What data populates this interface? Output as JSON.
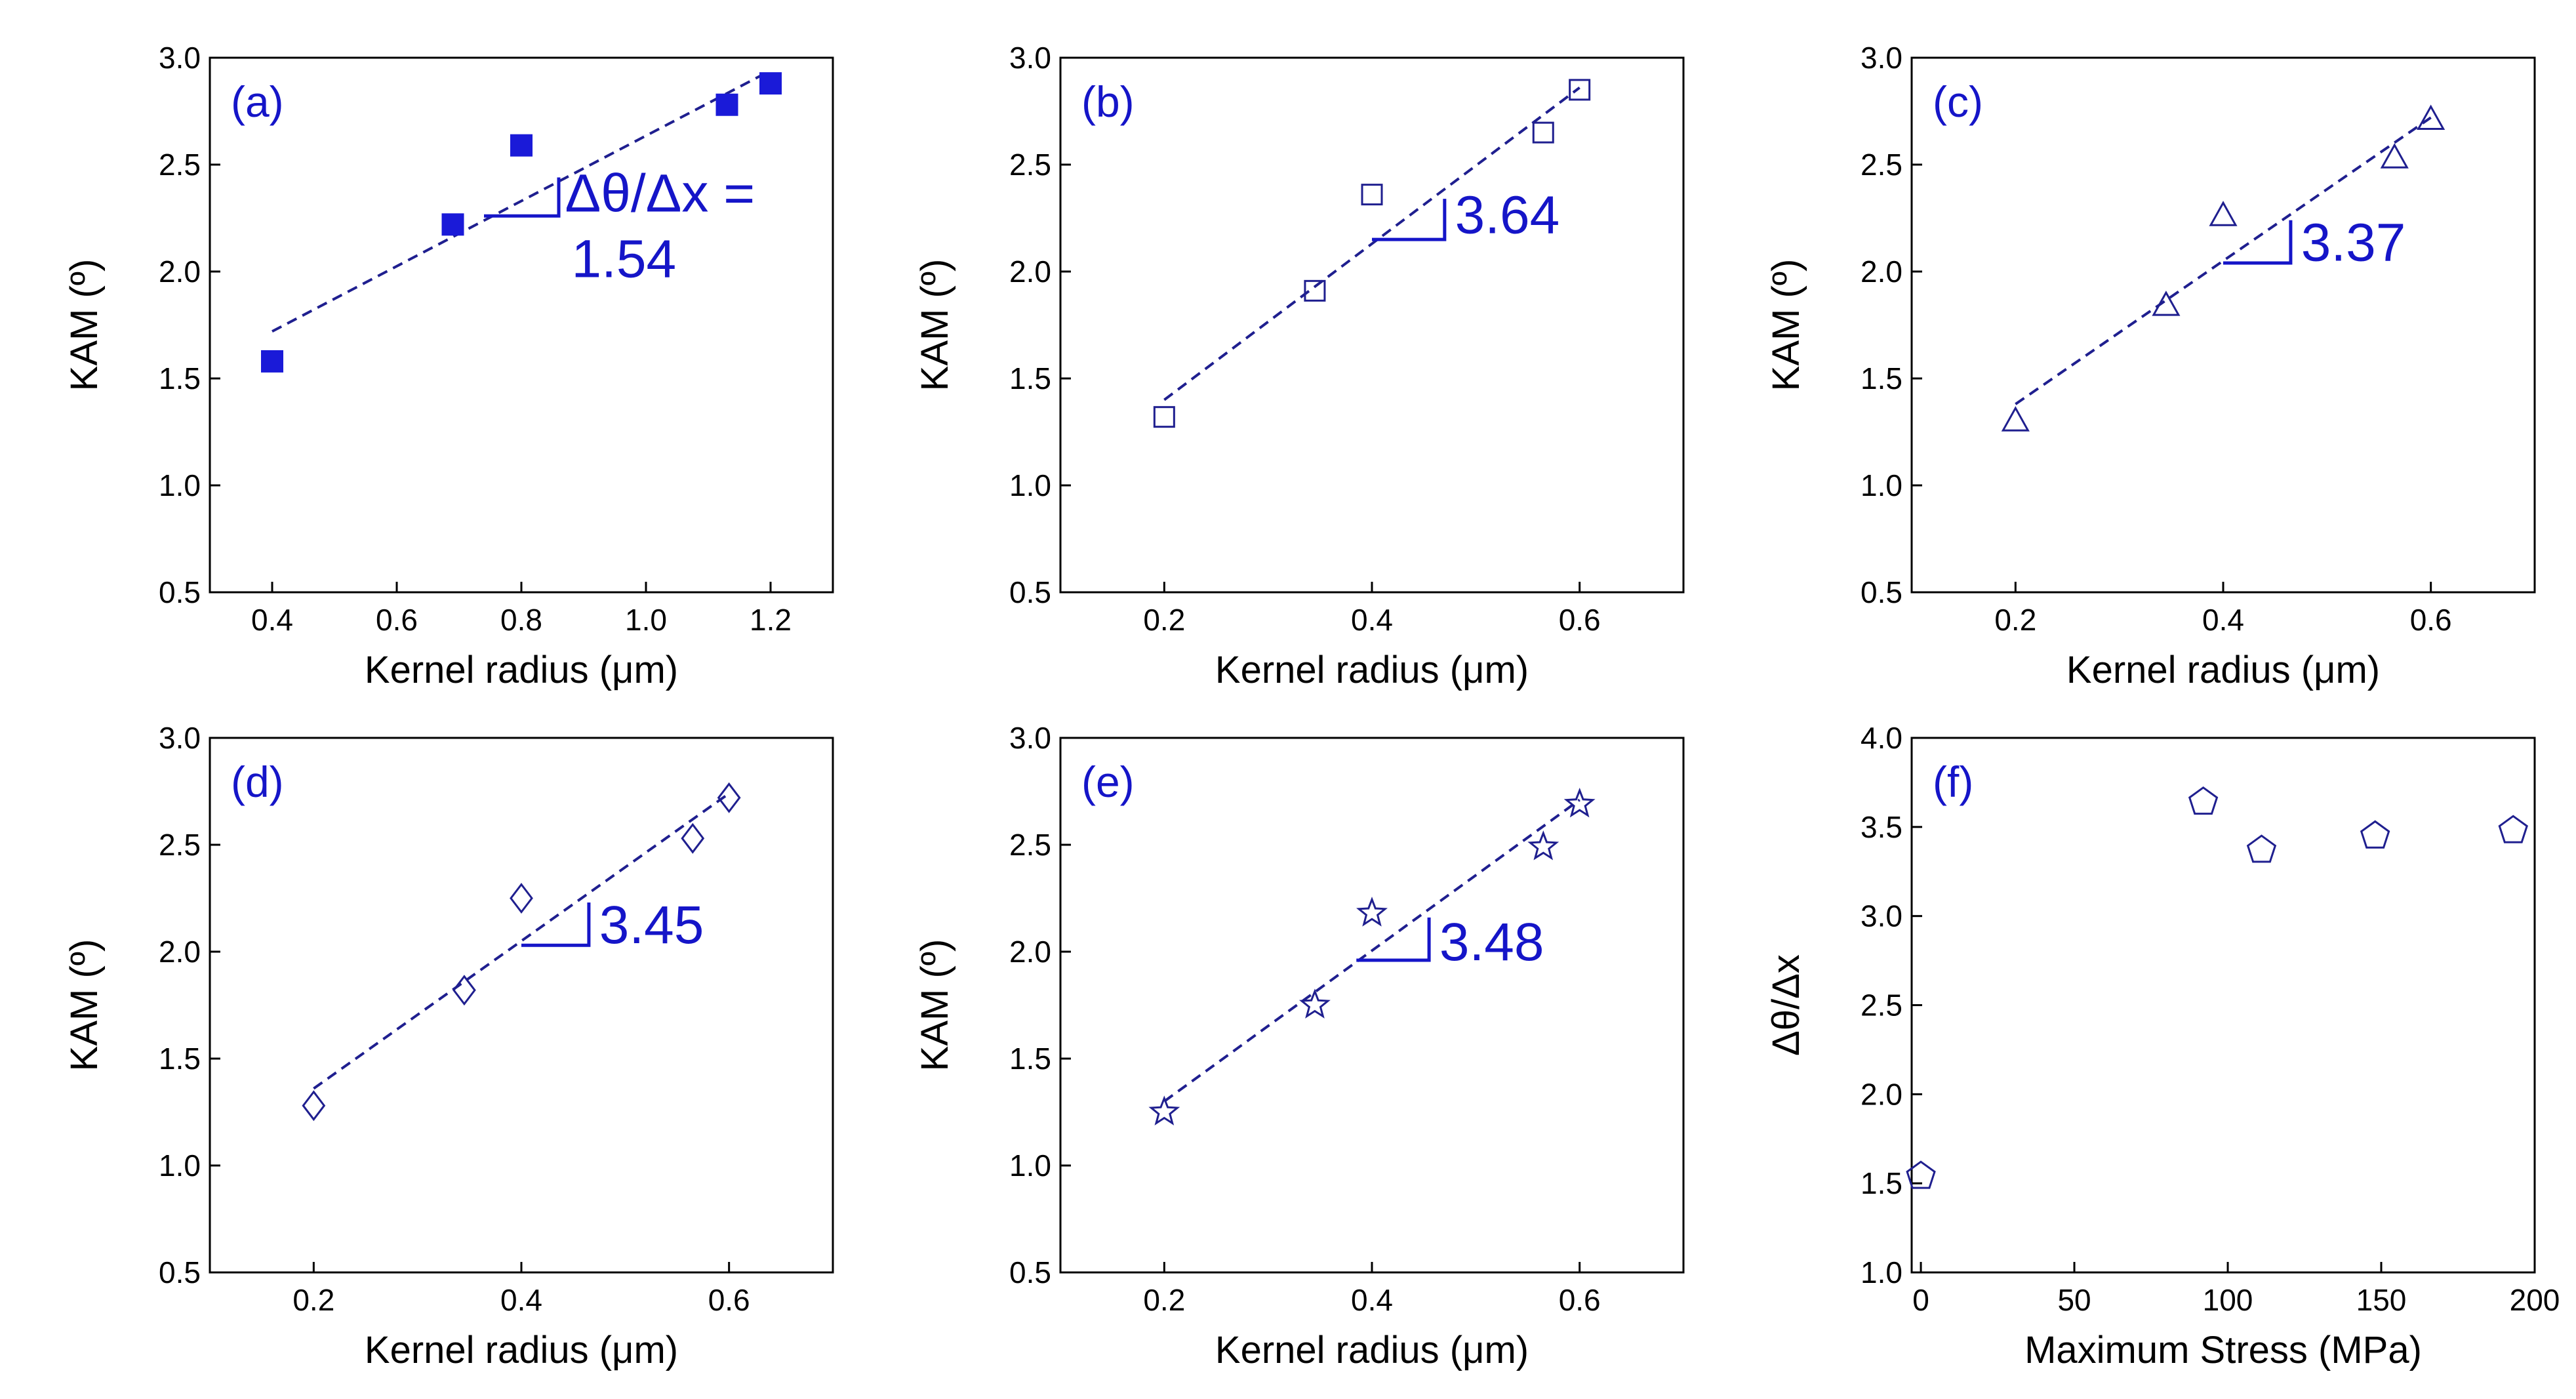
{
  "colors": {
    "filled_marker": "#1a1ad8",
    "open_marker": "#1f1f8f",
    "fit_line": "#1f1f8f",
    "slope_annotation": "#1515c8",
    "axis": "#000000"
  },
  "chart_data": [
    {
      "panel": "(a)",
      "type": "scatter",
      "marker": "filled-square",
      "xlabel": "Kernel radius (μm)",
      "ylabel": "KAM (º)",
      "xlim": [
        0.3,
        1.3
      ],
      "ylim": [
        0.5,
        3.0
      ],
      "xticks": [
        0.4,
        0.6,
        0.8,
        1.0,
        1.2
      ],
      "xtick_labels": [
        "0.4",
        "0.6",
        "0.8",
        "1.0",
        "1.2"
      ],
      "yticks": [
        0.5,
        1.0,
        1.5,
        2.0,
        2.5,
        3.0
      ],
      "ytick_labels": [
        "0.5",
        "1.0",
        "1.5",
        "2.0",
        "2.5",
        "3.0"
      ],
      "x": [
        0.4,
        0.69,
        0.8,
        1.13,
        1.2
      ],
      "y": [
        1.58,
        2.22,
        2.59,
        2.78,
        2.88
      ],
      "fit": {
        "x": [
          0.4,
          1.2
        ],
        "y": [
          1.72,
          2.94
        ]
      },
      "slope_triangle": {
        "x0": 0.74,
        "x1": 0.86,
        "y0": 2.26,
        "y1": 2.44
      },
      "slope_text": [
        "Δθ/Δx =",
        "1.54"
      ],
      "slope_text_pos": {
        "x": 0.87,
        "y": 2.28
      }
    },
    {
      "panel": "(b)",
      "type": "scatter",
      "marker": "open-square",
      "xlabel": "Kernel radius (μm)",
      "ylabel": "KAM (º)",
      "xlim": [
        0.1,
        0.7
      ],
      "ylim": [
        0.5,
        3.0
      ],
      "xticks": [
        0.2,
        0.4,
        0.6
      ],
      "xtick_labels": [
        "0.2",
        "0.4",
        "0.6"
      ],
      "yticks": [
        0.5,
        1.0,
        1.5,
        2.0,
        2.5,
        3.0
      ],
      "ytick_labels": [
        "0.5",
        "1.0",
        "1.5",
        "2.0",
        "2.5",
        "3.0"
      ],
      "x": [
        0.2,
        0.345,
        0.4,
        0.565,
        0.6
      ],
      "y": [
        1.32,
        1.91,
        2.36,
        2.65,
        2.85
      ],
      "fit": {
        "x": [
          0.2,
          0.6
        ],
        "y": [
          1.4,
          2.86
        ]
      },
      "slope_triangle": {
        "x0": 0.4,
        "x1": 0.47,
        "y0": 2.15,
        "y1": 2.34
      },
      "slope_text": [
        "3.64"
      ],
      "slope_text_pos": {
        "x": 0.48,
        "y": 2.18
      }
    },
    {
      "panel": "(c)",
      "type": "scatter",
      "marker": "open-triangle",
      "xlabel": "Kernel radius (μm)",
      "ylabel": "KAM (º)",
      "xlim": [
        0.1,
        0.7
      ],
      "ylim": [
        0.5,
        3.0
      ],
      "xticks": [
        0.2,
        0.4,
        0.6
      ],
      "xtick_labels": [
        "0.2",
        "0.4",
        "0.6"
      ],
      "yticks": [
        0.5,
        1.0,
        1.5,
        2.0,
        2.5,
        3.0
      ],
      "ytick_labels": [
        "0.5",
        "1.0",
        "1.5",
        "2.0",
        "2.5",
        "3.0"
      ],
      "x": [
        0.2,
        0.345,
        0.4,
        0.565,
        0.6
      ],
      "y": [
        1.3,
        1.84,
        2.26,
        2.53,
        2.71
      ],
      "fit": {
        "x": [
          0.2,
          0.6
        ],
        "y": [
          1.38,
          2.72
        ]
      },
      "slope_triangle": {
        "x0": 0.4,
        "x1": 0.465,
        "y0": 2.04,
        "y1": 2.24
      },
      "slope_text": [
        "3.37"
      ],
      "slope_text_pos": {
        "x": 0.475,
        "y": 2.05
      }
    },
    {
      "panel": "(d)",
      "type": "scatter",
      "marker": "open-diamond",
      "xlabel": "Kernel radius (μm)",
      "ylabel": "KAM (º)",
      "xlim": [
        0.1,
        0.7
      ],
      "ylim": [
        0.5,
        3.0
      ],
      "xticks": [
        0.2,
        0.4,
        0.6
      ],
      "xtick_labels": [
        "0.2",
        "0.4",
        "0.6"
      ],
      "yticks": [
        0.5,
        1.0,
        1.5,
        2.0,
        2.5,
        3.0
      ],
      "ytick_labels": [
        "0.5",
        "1.0",
        "1.5",
        "2.0",
        "2.5",
        "3.0"
      ],
      "x": [
        0.2,
        0.345,
        0.4,
        0.565,
        0.6
      ],
      "y": [
        1.28,
        1.82,
        2.25,
        2.53,
        2.72
      ],
      "fit": {
        "x": [
          0.2,
          0.6
        ],
        "y": [
          1.36,
          2.74
        ]
      },
      "slope_triangle": {
        "x0": 0.4,
        "x1": 0.465,
        "y0": 2.03,
        "y1": 2.23
      },
      "slope_text": [
        "3.45"
      ],
      "slope_text_pos": {
        "x": 0.475,
        "y": 2.04
      }
    },
    {
      "panel": "(e)",
      "type": "scatter",
      "marker": "open-star",
      "xlabel": "Kernel radius (μm)",
      "ylabel": "KAM (º)",
      "xlim": [
        0.1,
        0.7
      ],
      "ylim": [
        0.5,
        3.0
      ],
      "xticks": [
        0.2,
        0.4,
        0.6
      ],
      "xtick_labels": [
        "0.2",
        "0.4",
        "0.6"
      ],
      "yticks": [
        0.5,
        1.0,
        1.5,
        2.0,
        2.5,
        3.0
      ],
      "ytick_labels": [
        "0.5",
        "1.0",
        "1.5",
        "2.0",
        "2.5",
        "3.0"
      ],
      "x": [
        0.2,
        0.345,
        0.4,
        0.565,
        0.6
      ],
      "y": [
        1.25,
        1.75,
        2.18,
        2.49,
        2.69
      ],
      "fit": {
        "x": [
          0.2,
          0.6
        ],
        "y": [
          1.3,
          2.71
        ]
      },
      "slope_triangle": {
        "x0": 0.385,
        "x1": 0.455,
        "y0": 1.96,
        "y1": 2.16
      },
      "slope_text": [
        "3.48"
      ],
      "slope_text_pos": {
        "x": 0.465,
        "y": 1.96
      }
    },
    {
      "panel": "(f)",
      "type": "scatter",
      "marker": "open-pentagon",
      "xlabel": "Maximum Stress (MPa)",
      "ylabel": "Δθ/Δx",
      "xlim": [
        -3,
        200
      ],
      "ylim": [
        1.0,
        4.0
      ],
      "xticks": [
        0,
        50,
        100,
        150,
        200
      ],
      "xtick_labels": [
        "0",
        "50",
        "100",
        "150",
        "200"
      ],
      "yticks": [
        1.0,
        1.5,
        2.0,
        2.5,
        3.0,
        3.5,
        4.0
      ],
      "ytick_labels": [
        "1.0",
        "1.5",
        "2.0",
        "2.5",
        "3.0",
        "3.5",
        "4.0"
      ],
      "x": [
        0,
        92,
        111,
        148,
        193
      ],
      "y": [
        1.54,
        3.64,
        3.37,
        3.45,
        3.48
      ]
    }
  ]
}
